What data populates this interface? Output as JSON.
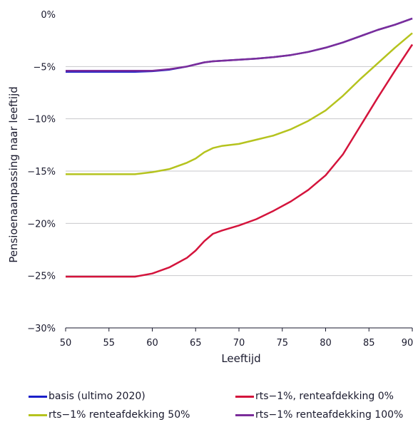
{
  "chart_data": {
    "type": "line",
    "xlabel": "Leeftijd",
    "ylabel": "Pensioenaanpassing naar leeftijd",
    "xlim": [
      50,
      90
    ],
    "ylim": [
      -30,
      0
    ],
    "x_ticks": [
      "50",
      "55",
      "60",
      "65",
      "70",
      "75",
      "80",
      "85",
      "90"
    ],
    "y_ticks": [
      "0%",
      "-5%",
      "-10%",
      "-15%",
      "-20%",
      "-25%",
      "-30%"
    ],
    "grid": "horizontal",
    "legend_position": "bottom",
    "x": [
      50,
      52,
      54,
      56,
      58,
      60,
      62,
      64,
      65,
      66,
      67,
      68,
      70,
      72,
      74,
      76,
      78,
      80,
      82,
      84,
      86,
      88,
      90
    ],
    "series": [
      {
        "name": "basis (ultimo 2020)",
        "color": "#1a1fc9",
        "values": [
          -5.5,
          -5.5,
          -5.5,
          -5.5,
          -5.5,
          -5.45,
          -5.3,
          -5.0,
          -4.8,
          -4.6,
          -4.5,
          -4.45,
          -4.35,
          -4.25,
          -4.1,
          -3.9,
          -3.6,
          -3.2,
          -2.7,
          -2.1,
          -1.5,
          -1.0,
          -0.4
        ]
      },
      {
        "name": "rts-1%, renteafdekking 0%",
        "color": "#d4143c",
        "values": [
          -25.1,
          -25.1,
          -25.1,
          -25.1,
          -25.1,
          -24.8,
          -24.2,
          -23.3,
          -22.6,
          -21.7,
          -21.0,
          -20.7,
          -20.2,
          -19.6,
          -18.8,
          -17.9,
          -16.8,
          -15.4,
          -13.4,
          -10.7,
          -8.0,
          -5.4,
          -2.9
        ]
      },
      {
        "name": "rts-1% renteafdekking 50%",
        "color": "#b5c31e",
        "values": [
          -15.3,
          -15.3,
          -15.3,
          -15.3,
          -15.3,
          -15.1,
          -14.8,
          -14.2,
          -13.8,
          -13.2,
          -12.8,
          -12.6,
          -12.4,
          -12.0,
          -11.6,
          -11.0,
          -10.2,
          -9.2,
          -7.8,
          -6.2,
          -4.7,
          -3.2,
          -1.8
        ]
      },
      {
        "name": "rts-1% renteafdekking 100%",
        "color": "#7b2d9a",
        "values": [
          -5.4,
          -5.4,
          -5.4,
          -5.4,
          -5.4,
          -5.4,
          -5.25,
          -5.0,
          -4.8,
          -4.6,
          -4.5,
          -4.45,
          -4.35,
          -4.25,
          -4.1,
          -3.9,
          -3.6,
          -3.2,
          -2.7,
          -2.1,
          -1.5,
          -1.0,
          -0.4
        ]
      }
    ]
  }
}
